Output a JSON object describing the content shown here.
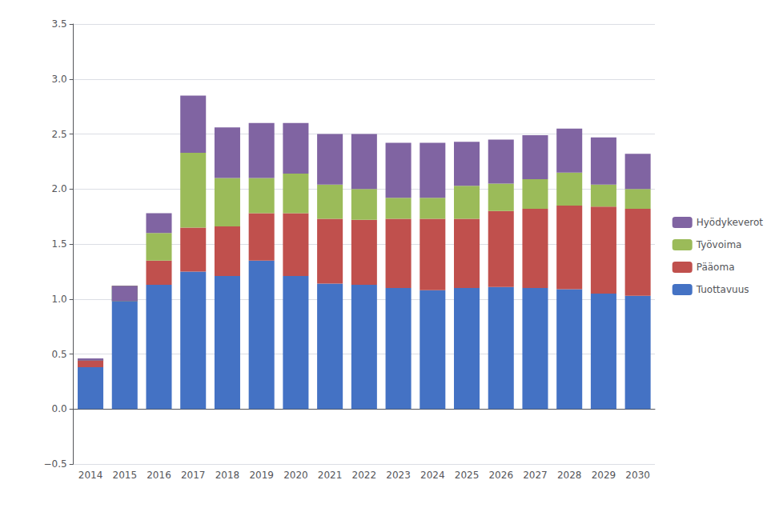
{
  "chart_data": {
    "type": "bar",
    "stacked": true,
    "categories": [
      "2014",
      "2015",
      "2016",
      "2017",
      "2018",
      "2019",
      "2020",
      "2021",
      "2022",
      "2023",
      "2024",
      "2025",
      "2026",
      "2027",
      "2028",
      "2029",
      "2030"
    ],
    "series": [
      {
        "name": "Tuottavuus",
        "color": "#4472C4",
        "values": [
          0.38,
          1.09,
          1.13,
          1.25,
          1.21,
          1.35,
          1.21,
          1.14,
          1.13,
          1.1,
          1.08,
          1.1,
          1.11,
          1.1,
          1.09,
          1.05,
          1.03
        ]
      },
      {
        "name": "Pääoma",
        "color": "#C0504D",
        "values": [
          0.07,
          0.03,
          0.22,
          0.4,
          0.45,
          0.43,
          0.57,
          0.59,
          0.59,
          0.63,
          0.65,
          0.63,
          0.69,
          0.72,
          0.76,
          0.79,
          0.79
        ]
      },
      {
        "name": "Työvoima",
        "color": "#9BBB59",
        "values": [
          -0.01,
          -0.14,
          0.25,
          0.68,
          0.44,
          0.32,
          0.36,
          0.31,
          0.28,
          0.19,
          0.19,
          0.3,
          0.25,
          0.27,
          0.3,
          0.2,
          0.18
        ]
      },
      {
        "name": "Hyödykeverot",
        "color": "#8064A2",
        "values": [
          0.02,
          0.14,
          0.18,
          0.52,
          0.46,
          0.5,
          0.46,
          0.46,
          0.5,
          0.5,
          0.5,
          0.4,
          0.4,
          0.4,
          0.4,
          0.43,
          0.32
        ]
      }
    ],
    "ylim": [
      -0.5,
      3.5
    ],
    "yticks": [
      {
        "value": -0.5,
        "label": "−0.5"
      },
      {
        "value": 0.0,
        "label": "0.0"
      },
      0.5,
      {
        "value": 1.0,
        "label": "1.0"
      },
      1.5,
      {
        "value": 2.0,
        "label": "2.0"
      },
      2.5,
      {
        "value": 3.0,
        "label": "3.0"
      },
      3.5
    ],
    "grid": true,
    "legend": "right"
  }
}
